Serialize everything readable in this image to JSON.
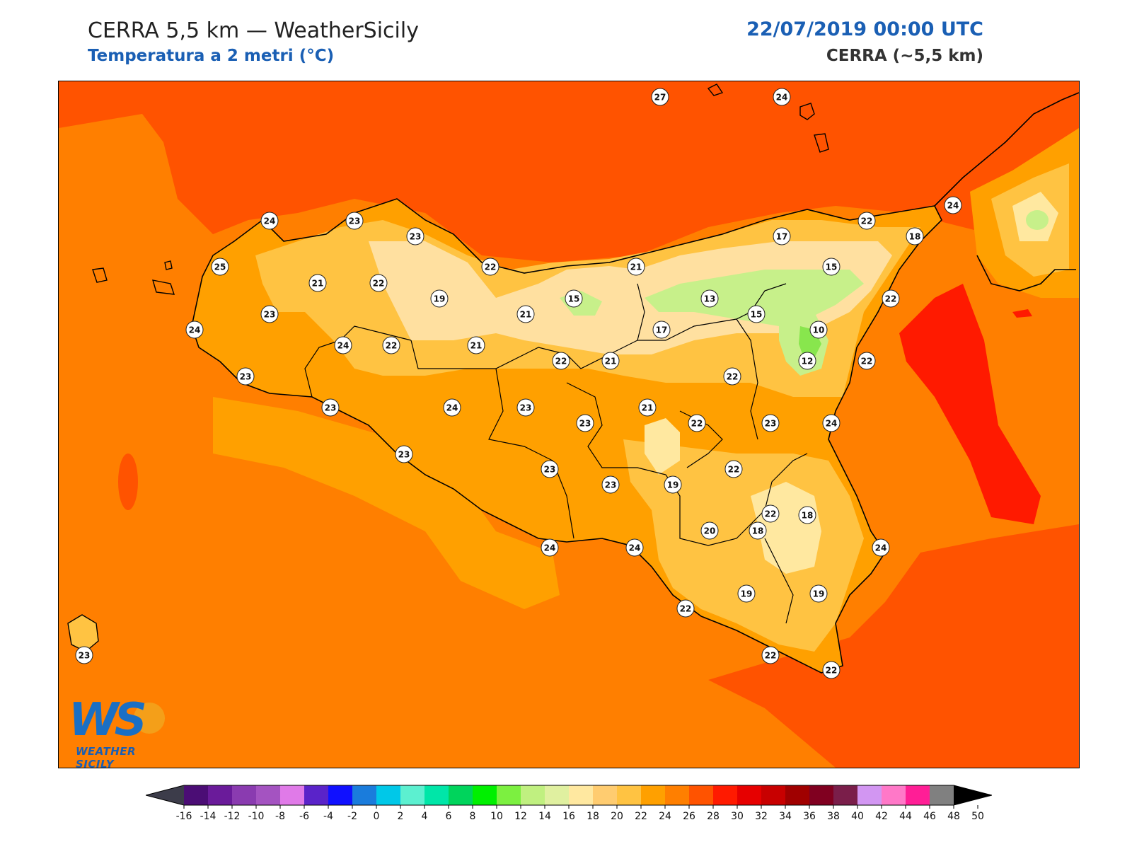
{
  "header": {
    "title": "CERRA 5,5 km — WeatherSicily",
    "subtitle": "Temperatura a 2 metri (°C)",
    "datetime": "22/07/2019 00:00 UTC",
    "model": "CERRA (~5,5 km)"
  },
  "logo": {
    "mark": "WS",
    "text": "WEATHER SICILY"
  },
  "colors": {
    "sea_north": "#ff5300",
    "sea_south": "#ff7f00",
    "sea_east_hot": "#ff1a00",
    "land_warm": "#ffa000",
    "land_mild": "#ffc342",
    "land_cool": "#ffe8a0",
    "land_cold": "#c7f08a",
    "land_coldest": "#88e64d"
  },
  "colorbar": {
    "ticks": [
      "-16",
      "-14",
      "-12",
      "-10",
      "-8",
      "-6",
      "-4",
      "-2",
      "0",
      "2",
      "4",
      "6",
      "8",
      "10",
      "12",
      "14",
      "16",
      "18",
      "20",
      "22",
      "24",
      "26",
      "28",
      "30",
      "32",
      "34",
      "36",
      "38",
      "40",
      "42",
      "44",
      "46",
      "48",
      "50"
    ],
    "colors": [
      "#2e0a4a",
      "#4b0d75",
      "#6a1b9a",
      "#8a3bb0",
      "#a453c1",
      "#e07ae8",
      "#5a23c9",
      "#1010ff",
      "#1a7cdc",
      "#00c8e8",
      "#5cf0d0",
      "#00e6a8",
      "#00d45c",
      "#00f000",
      "#7cf040",
      "#c0f080",
      "#e0f0a0",
      "#ffe8a0",
      "#ffcc70",
      "#ffc342",
      "#ffa000",
      "#ff7f00",
      "#ff5300",
      "#ff1a00",
      "#e60000",
      "#c80000",
      "#a00000",
      "#800020",
      "#7a1e4a",
      "#d296f2",
      "#ff78c8",
      "#ff1e96",
      "#808080",
      "#3c3c3c"
    ]
  },
  "stations": [
    {
      "v": "27"
    },
    {
      "v": "24"
    },
    {
      "v": "24"
    },
    {
      "v": "23"
    },
    {
      "v": "23"
    },
    {
      "v": "22"
    },
    {
      "v": "25"
    },
    {
      "v": "21"
    },
    {
      "v": "22"
    },
    {
      "v": "19"
    },
    {
      "v": "22"
    },
    {
      "v": "21"
    },
    {
      "v": "15"
    },
    {
      "v": "13"
    },
    {
      "v": "17"
    },
    {
      "v": "15"
    },
    {
      "v": "22"
    },
    {
      "v": "18"
    },
    {
      "v": "24"
    },
    {
      "v": "23"
    },
    {
      "v": "24"
    },
    {
      "v": "23"
    },
    {
      "v": "24"
    },
    {
      "v": "22"
    },
    {
      "v": "21"
    },
    {
      "v": "21"
    },
    {
      "v": "17"
    },
    {
      "v": "15"
    },
    {
      "v": "10"
    },
    {
      "v": "12"
    },
    {
      "v": "22"
    },
    {
      "v": "22"
    },
    {
      "v": "21"
    },
    {
      "v": "22"
    },
    {
      "v": "23"
    },
    {
      "v": "24"
    },
    {
      "v": "23"
    },
    {
      "v": "23"
    },
    {
      "v": "21"
    },
    {
      "v": "23"
    },
    {
      "v": "22"
    },
    {
      "v": "22"
    },
    {
      "v": "24"
    },
    {
      "v": "23"
    },
    {
      "v": "23"
    },
    {
      "v": "23"
    },
    {
      "v": "19"
    },
    {
      "v": "22"
    },
    {
      "v": "24"
    },
    {
      "v": "24"
    },
    {
      "v": "20"
    },
    {
      "v": "18"
    },
    {
      "v": "18"
    },
    {
      "v": "24"
    },
    {
      "v": "19"
    },
    {
      "v": "19"
    },
    {
      "v": "22"
    },
    {
      "v": "22"
    },
    {
      "v": "22"
    },
    {
      "v": "23"
    }
  ]
}
